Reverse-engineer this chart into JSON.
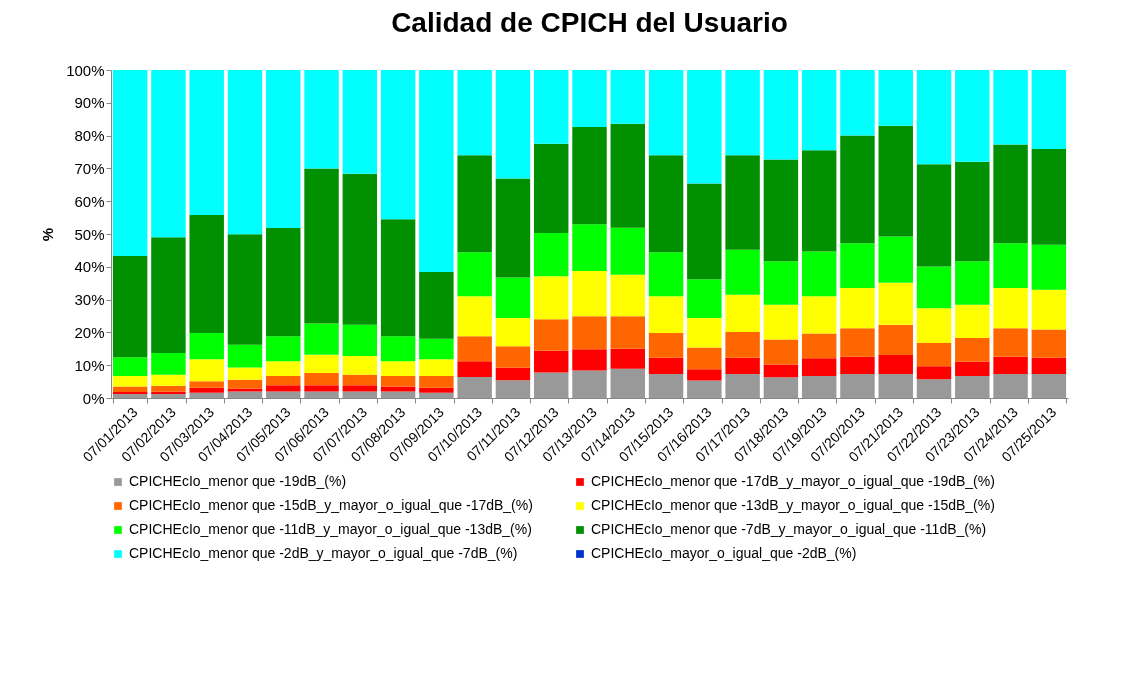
{
  "chart_data": {
    "type": "bar",
    "stacked": true,
    "title": "Calidad de CPICH del Usuario",
    "ylabel": "%",
    "categories": [
      "07/01/2013",
      "07/02/2013",
      "07/03/2013",
      "07/04/2013",
      "07/05/2013",
      "07/06/2013",
      "07/07/2013",
      "07/08/2013",
      "07/09/2013",
      "07/10/2013",
      "07/11/2013",
      "07/12/2013",
      "07/13/2013",
      "07/14/2013",
      "07/15/2013",
      "07/16/2013",
      "07/17/2013",
      "07/18/2013",
      "07/19/2013",
      "07/20/2013",
      "07/21/2013",
      "07/22/2013",
      "07/23/2013",
      "07/24/2013",
      "07/25/2013"
    ],
    "ylim": [
      0,
      100
    ],
    "yticks": [
      {
        "value": 0,
        "label": "0%"
      },
      {
        "value": 10,
        "label": "10%"
      },
      {
        "value": 20,
        "label": "20%"
      },
      {
        "value": 30,
        "label": "30%"
      },
      {
        "value": 40,
        "label": "40%"
      },
      {
        "value": 50,
        "label": "50%"
      },
      {
        "value": 60,
        "label": "60%"
      },
      {
        "value": 70,
        "label": "70%"
      },
      {
        "value": 80,
        "label": "80%"
      },
      {
        "value": 90,
        "label": "90%"
      },
      {
        "value": 100,
        "label": "100%"
      }
    ],
    "grid": false,
    "legend": "bottom",
    "series": [
      {
        "name": "CPICHEcIo_menor que -19dB_(%)",
        "color": "#999999",
        "values": [
          1.2,
          1.2,
          1.6,
          2.0,
          2.0,
          2.0,
          2.0,
          2.0,
          1.6,
          6.4,
          5.4,
          7.8,
          8.4,
          8.9,
          7.3,
          5.3,
          7.3,
          6.3,
          6.7,
          7.3,
          7.3,
          5.7,
          6.7,
          7.3,
          7.3
        ]
      },
      {
        "name": "CPICHEcIo_menor que -17dB_y_mayor_o_igual_que -19dB_(%)",
        "color": "#ff0000",
        "values": [
          0.6,
          0.7,
          1.5,
          0.9,
          1.9,
          1.9,
          1.9,
          1.5,
          1.5,
          4.8,
          3.8,
          6.6,
          6.5,
          6.1,
          5.0,
          3.5,
          5.0,
          3.9,
          5.4,
          5.3,
          5.8,
          4.0,
          4.4,
          5.3,
          5.0
        ]
      },
      {
        "name": "CPICHEcIo_menor que -15dB_y_mayor_o_igual_que -17dB_(%)",
        "color": "#ff6600",
        "values": [
          1.7,
          1.8,
          2.0,
          2.7,
          2.8,
          3.7,
          3.2,
          3.2,
          3.6,
          7.6,
          6.6,
          9.6,
          10.0,
          9.9,
          7.5,
          6.6,
          7.8,
          7.6,
          7.6,
          8.7,
          9.2,
          7.1,
          7.2,
          8.7,
          8.6
        ]
      },
      {
        "name": "CPICHEcIo_menor que -13dB_y_mayor_o_igual_que -15dB_(%)",
        "color": "#ffff00",
        "values": [
          3.2,
          3.4,
          6.7,
          3.7,
          4.5,
          5.6,
          5.7,
          4.5,
          5.1,
          12.2,
          8.6,
          13.1,
          13.8,
          12.7,
          11.2,
          9.0,
          11.4,
          10.6,
          11.3,
          12.2,
          12.8,
          10.6,
          10.1,
          12.2,
          12.1
        ]
      },
      {
        "name": "CPICHEcIo_menor que -11dB_y_mayor_o_igual_que -13dB_(%)",
        "color": "#00ff00",
        "values": [
          5.7,
          6.6,
          8.0,
          6.9,
          7.6,
          9.5,
          9.5,
          7.6,
          6.3,
          13.4,
          12.3,
          13.2,
          14.3,
          14.3,
          13.4,
          11.8,
          13.7,
          13.3,
          13.7,
          13.7,
          14.1,
          12.7,
          13.3,
          13.7,
          13.7
        ]
      },
      {
        "name": "CPICHEcIo_menor que -7dB_y_mayor_o_igual_que -11dB_(%)",
        "color": "#009000",
        "values": [
          30.9,
          35.3,
          36.0,
          33.7,
          33.0,
          47.3,
          46.1,
          35.7,
          20.3,
          29.6,
          30.2,
          27.2,
          29.6,
          31.7,
          29.6,
          29.2,
          28.8,
          31.0,
          30.8,
          32.8,
          33.8,
          31.2,
          30.3,
          30.1,
          29.2
        ]
      },
      {
        "name": "CPICHEcIo_menor que -2dB_y_mayor_o_igual_que -7dB_(%)",
        "color": "#00ffff",
        "values": [
          56.7,
          51.0,
          44.2,
          50.1,
          48.2,
          30.0,
          31.6,
          45.5,
          61.6,
          26.0,
          33.1,
          22.5,
          17.4,
          16.4,
          26.0,
          34.6,
          26.0,
          27.3,
          24.5,
          20.0,
          17.0,
          28.7,
          28.0,
          22.7,
          24.1
        ]
      },
      {
        "name": "CPICHEcIo_mayor_o_igual_que -2dB_(%)",
        "color": "#0033cc",
        "values": [
          0,
          0,
          0,
          0,
          0,
          0,
          0,
          0,
          0,
          0,
          0,
          0,
          0,
          0,
          0,
          0,
          0,
          0,
          0,
          0,
          0,
          0,
          0,
          0,
          0
        ]
      }
    ]
  }
}
